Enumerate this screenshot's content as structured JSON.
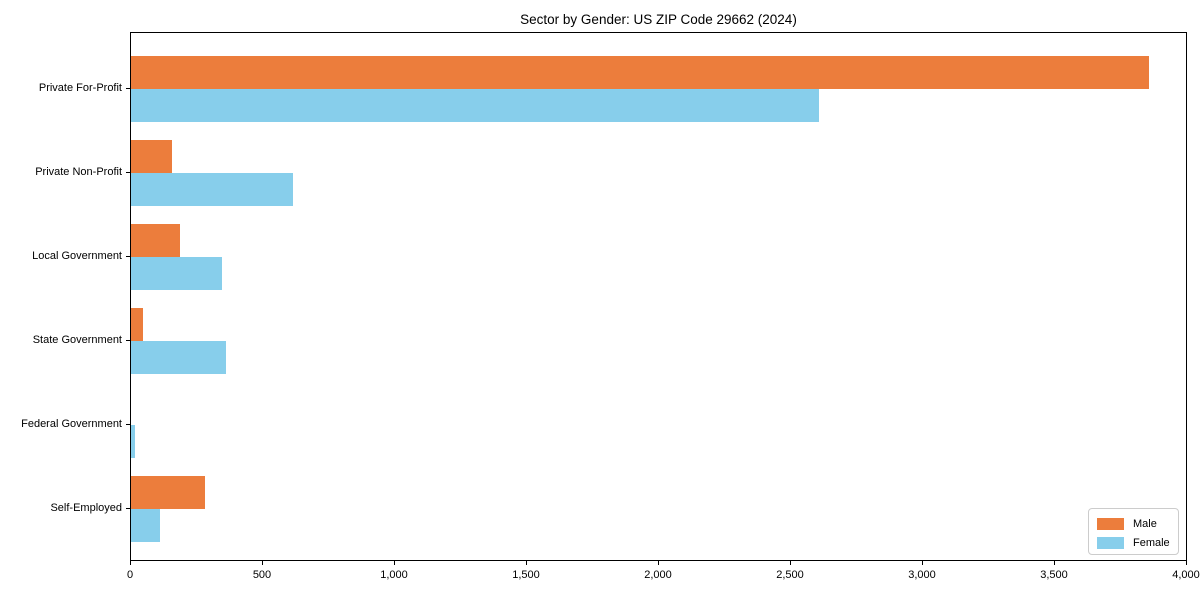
{
  "chart_data": {
    "type": "bar",
    "orientation": "horizontal",
    "title": "Sector by Gender: US ZIP Code 29662 (2024)",
    "categories": [
      "Private For-Profit",
      "Private Non-Profit",
      "Local Government",
      "State Government",
      "Federal Government",
      "Self-Employed"
    ],
    "series": [
      {
        "name": "Male",
        "color": "#ec7d3c",
        "values": [
          3860,
          155,
          185,
          45,
          0,
          280
        ]
      },
      {
        "name": "Female",
        "color": "#87ceeb",
        "values": [
          2610,
          615,
          345,
          360,
          15,
          110
        ]
      }
    ],
    "xlim": [
      0,
      4000
    ],
    "xticks": [
      0,
      500,
      1000,
      1500,
      2000,
      2500,
      3000,
      3500,
      4000
    ],
    "xtick_labels": [
      "0",
      "500",
      "1,000",
      "1,500",
      "2,000",
      "2,500",
      "3,000",
      "3,500",
      "4,000"
    ],
    "legend": {
      "labels": [
        "Male",
        "Female"
      ],
      "position": "lower right"
    },
    "grid": false,
    "background": "#ffffff",
    "axis_color": "#000000"
  }
}
